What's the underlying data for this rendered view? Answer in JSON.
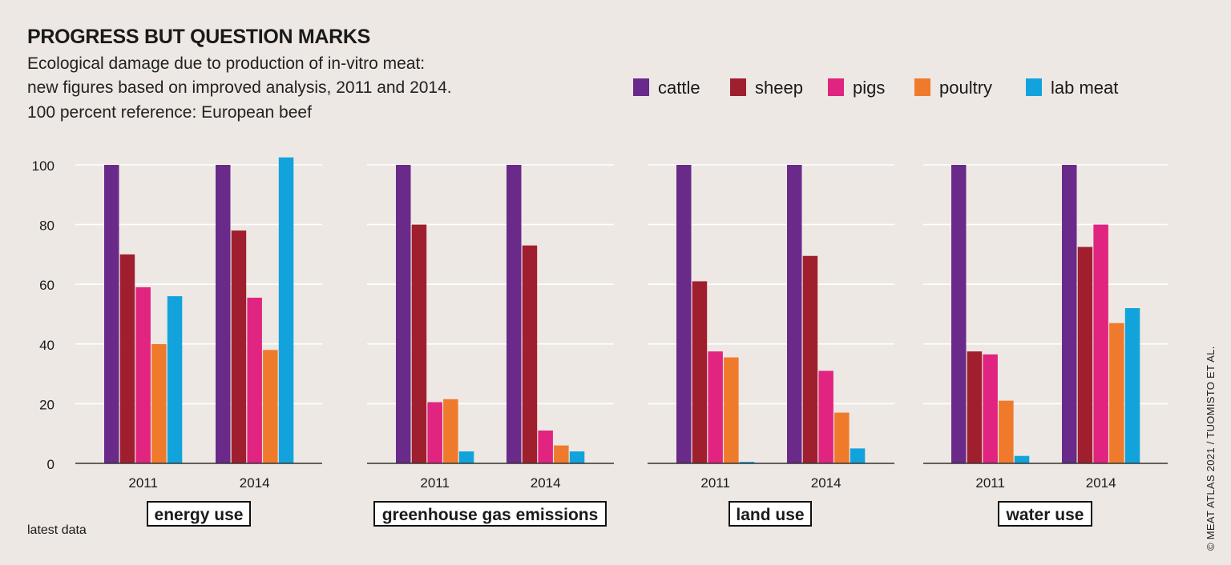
{
  "title": "PROGRESS BUT QUESTION MARKS",
  "subtitle_lines": [
    "Ecological damage due to production of in-vitro meat:",
    "new figures based on improved analysis, 2011 and 2014.",
    "100 percent reference: European beef"
  ],
  "legend": [
    {
      "label": "cattle",
      "color": "#6a2a8a"
    },
    {
      "label": "sheep",
      "color": "#a01f2e"
    },
    {
      "label": "pigs",
      "color": "#e0247f"
    },
    {
      "label": "poultry",
      "color": "#f07a2c"
    },
    {
      "label": "lab meat",
      "color": "#12a3dd"
    }
  ],
  "y_ticks": [
    "0",
    "20",
    "40",
    "60",
    "80",
    "100"
  ],
  "note": "latest data",
  "credit": "© MEAT ATLAS 2021 / TUOMISTO ET AL.",
  "chart_data": [
    {
      "type": "bar",
      "title": "energy use",
      "categories": [
        "2011",
        "2014"
      ],
      "ylim": [
        0,
        100
      ],
      "series": [
        {
          "name": "cattle",
          "values": [
            100,
            100
          ]
        },
        {
          "name": "sheep",
          "values": [
            70,
            78
          ]
        },
        {
          "name": "pigs",
          "values": [
            59,
            55.5
          ]
        },
        {
          "name": "poultry",
          "values": [
            40,
            38
          ]
        },
        {
          "name": "lab meat",
          "values": [
            56,
            102.5
          ]
        }
      ]
    },
    {
      "type": "bar",
      "title": "greenhouse gas emissions",
      "categories": [
        "2011",
        "2014"
      ],
      "ylim": [
        0,
        100
      ],
      "series": [
        {
          "name": "cattle",
          "values": [
            100,
            100
          ]
        },
        {
          "name": "sheep",
          "values": [
            80,
            73
          ]
        },
        {
          "name": "pigs",
          "values": [
            20.5,
            11
          ]
        },
        {
          "name": "poultry",
          "values": [
            21.5,
            6
          ]
        },
        {
          "name": "lab meat",
          "values": [
            4,
            4
          ]
        }
      ]
    },
    {
      "type": "bar",
      "title": "land use",
      "categories": [
        "2011",
        "2014"
      ],
      "ylim": [
        0,
        100
      ],
      "series": [
        {
          "name": "cattle",
          "values": [
            100,
            100
          ]
        },
        {
          "name": "sheep",
          "values": [
            61,
            69.5
          ]
        },
        {
          "name": "pigs",
          "values": [
            37.5,
            31
          ]
        },
        {
          "name": "poultry",
          "values": [
            35.5,
            17
          ]
        },
        {
          "name": "lab meat",
          "values": [
            0.5,
            5
          ]
        }
      ]
    },
    {
      "type": "bar",
      "title": "water use",
      "categories": [
        "2011",
        "2014"
      ],
      "ylim": [
        0,
        100
      ],
      "series": [
        {
          "name": "cattle",
          "values": [
            100,
            100
          ]
        },
        {
          "name": "sheep",
          "values": [
            37.5,
            72.5
          ]
        },
        {
          "name": "pigs",
          "values": [
            36.5,
            80
          ]
        },
        {
          "name": "poultry",
          "values": [
            21,
            47
          ]
        },
        {
          "name": "lab meat",
          "values": [
            2.5,
            52
          ]
        }
      ]
    }
  ]
}
